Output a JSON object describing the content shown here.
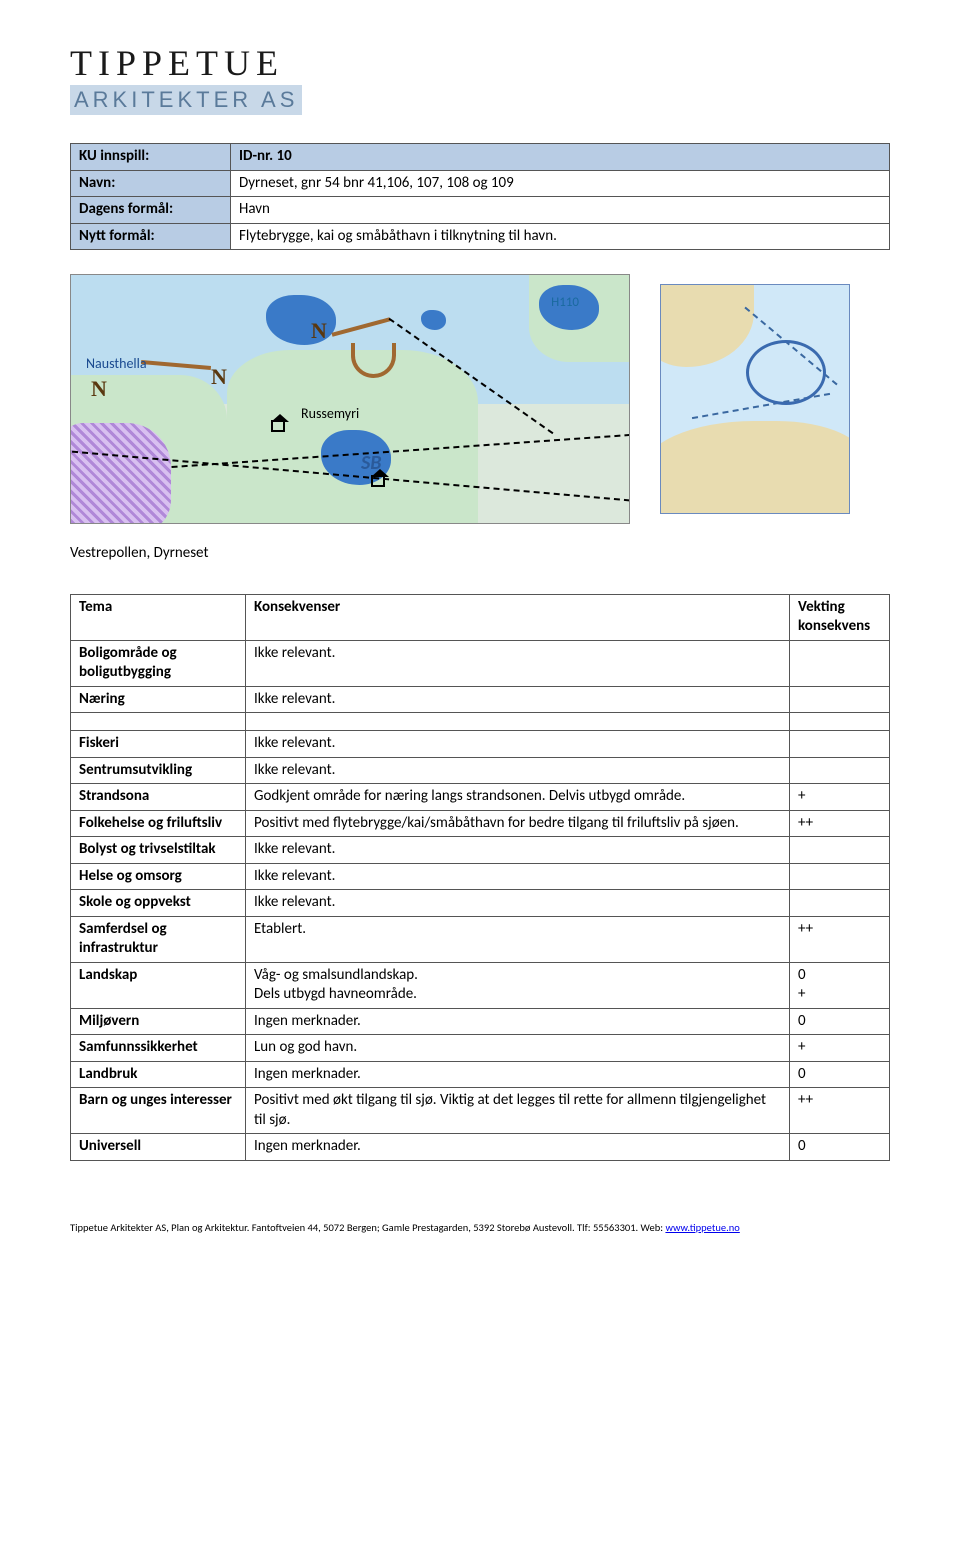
{
  "logo": {
    "line1": "TIPPETUE",
    "line2": "ARKITEKTER AS"
  },
  "info": {
    "rows": [
      {
        "label": "KU innspill:",
        "value": "ID-nr. 10"
      },
      {
        "label": "Navn:",
        "value": "Dyrneset, gnr 54 bnr 41,106, 107, 108 og 109"
      },
      {
        "label": "Dagens formål:",
        "value": "Havn"
      },
      {
        "label": "Nytt formål:",
        "value": "Flytebrygge, kai og småbåthavn i tilknytning til havn."
      }
    ]
  },
  "map": {
    "labels": {
      "nausthella": "Nausthella",
      "russemyri": "Russemyri",
      "sb": "SB",
      "h110": "H110"
    }
  },
  "caption": "Vestrepollen, Dyrneset",
  "table": {
    "headers": {
      "tema": "Tema",
      "konsekvenser": "Konsekvenser",
      "vekting": "Vekting konsekvens"
    },
    "groups": [
      [
        {
          "tema": "Boligområde og boligutbygging",
          "kons": "Ikke relevant.",
          "vekt": ""
        },
        {
          "tema": "Næring",
          "kons": "Ikke relevant.",
          "vekt": ""
        }
      ],
      [
        {
          "tema": "Fiskeri",
          "kons": "Ikke relevant.",
          "vekt": ""
        },
        {
          "tema": "Sentrumsutvikling",
          "kons": "Ikke relevant.",
          "vekt": ""
        },
        {
          "tema": "Strandsona",
          "kons": "Godkjent område for næring langs strandsonen. Delvis utbygd område.",
          "vekt": "+"
        },
        {
          "tema": "Folkehelse og friluftsliv",
          "kons": "Positivt med flytebrygge/kai/småbåthavn for bedre tilgang til friluftsliv på sjøen.",
          "vekt": "++"
        },
        {
          "tema": "Bolyst og trivselstiltak",
          "kons": "Ikke relevant.",
          "vekt": ""
        },
        {
          "tema": "Helse og omsorg",
          "kons": "Ikke relevant.",
          "vekt": ""
        },
        {
          "tema": "Skole og oppvekst",
          "kons": "Ikke relevant.",
          "vekt": ""
        },
        {
          "tema": "Samferdsel og infrastruktur",
          "kons": "Etablert.",
          "vekt": "++"
        },
        {
          "tema": "Landskap",
          "kons": "Våg- og smalsundlandskap.\nDels utbygd havneområde.",
          "vekt": "0\n+"
        },
        {
          "tema": "Miljøvern",
          "kons": "Ingen merknader.",
          "vekt": "0"
        },
        {
          "tema": "Samfunnssikkerhet",
          "kons": "Lun og god havn.",
          "vekt": "+"
        },
        {
          "tema": "Landbruk",
          "kons": "Ingen merknader.",
          "vekt": "0"
        },
        {
          "tema": "Barn og unges interesser",
          "kons": "Positivt med økt tilgang til sjø. Viktig at det legges til rette for allmenn tilgjengelighet til sjø.",
          "vekt": "++"
        },
        {
          "tema": "Universell",
          "kons": "Ingen merknader.",
          "vekt": "0"
        }
      ]
    ]
  },
  "footer": {
    "text": "Tippetue Arkitekter AS, Plan og Arkitektur. Fantoftveien 44, 5072 Bergen; Gamle Prestagarden, 5392 Storebø Austevoll. Tlf: 55563301. Web: ",
    "link_text": "www.tippetue.no",
    "link_href": "http://www.tippetue.no"
  },
  "colors": {
    "header_bg": "#b8cce4",
    "border": "#555555"
  }
}
